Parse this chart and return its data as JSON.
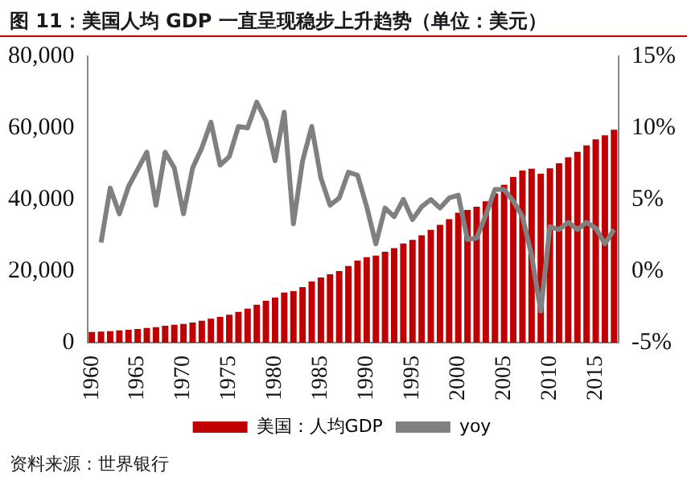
{
  "chart_data": {
    "type": "bar",
    "title": "图 11：美国人均 GDP 一直呈现稳步上升趋势（单位：美元）",
    "categories": [
      "1960",
      null,
      null,
      null,
      null,
      "1965",
      null,
      null,
      null,
      null,
      "1970",
      null,
      null,
      null,
      null,
      "1975",
      null,
      null,
      null,
      null,
      "1980",
      null,
      null,
      null,
      null,
      "1985",
      null,
      null,
      null,
      null,
      "1990",
      null,
      null,
      null,
      null,
      "1995",
      null,
      null,
      null,
      null,
      "2000",
      null,
      null,
      null,
      null,
      "2005",
      null,
      null,
      null,
      null,
      "2010",
      null,
      null,
      null,
      null,
      "2015",
      null,
      null
    ],
    "series": [
      {
        "name": "美国：人均GDP",
        "color": "#c00000",
        "values": [
          3000,
          3100,
          3200,
          3400,
          3600,
          3800,
          4100,
          4300,
          4700,
          5000,
          5200,
          5600,
          6100,
          6700,
          7200,
          7800,
          8600,
          9500,
          10600,
          11700,
          12600,
          14000,
          14400,
          15500,
          17100,
          18200,
          19100,
          20000,
          21400,
          22900,
          23900,
          24300,
          25400,
          26400,
          27700,
          28700,
          30000,
          31500,
          32900,
          34500,
          36300,
          37100,
          38000,
          39500,
          41700,
          44100,
          46300,
          48100,
          48600,
          47200,
          48700,
          50100,
          51800,
          53300,
          55100,
          56800,
          57900,
          59500
        ]
      },
      {
        "name": "yoy",
        "type": "line",
        "axis": "y2",
        "color": "#808080",
        "values": [
          null,
          2.0,
          5.8,
          4.0,
          5.9,
          7.1,
          8.3,
          4.6,
          8.3,
          7.2,
          4.0,
          7.2,
          8.6,
          10.4,
          7.4,
          8.0,
          10.1,
          10.0,
          11.8,
          10.5,
          7.7,
          11.1,
          3.3,
          7.7,
          10.1,
          6.5,
          4.6,
          5.1,
          6.9,
          6.7,
          4.5,
          1.9,
          4.4,
          3.8,
          5.0,
          3.6,
          4.5,
          5.0,
          4.4,
          5.1,
          5.3,
          2.2,
          2.3,
          3.9,
          5.7,
          5.7,
          4.9,
          3.8,
          1.1,
          -2.8,
          3.1,
          2.9,
          3.4,
          2.9,
          3.4,
          3.0,
          1.9,
          2.9
        ]
      }
    ],
    "ylim": [
      0,
      80000
    ],
    "yticks": [
      {
        "value": 0,
        "label": "0"
      },
      {
        "value": 20000,
        "label": "20,000"
      },
      {
        "value": 40000,
        "label": "40,000"
      },
      {
        "value": 60000,
        "label": "60,000"
      },
      {
        "value": 80000,
        "label": "80,000"
      }
    ],
    "y2lim": [
      -5,
      15
    ],
    "y2ticks": [
      {
        "value": -5,
        "label": "-5%"
      },
      {
        "value": 0,
        "label": "0%"
      },
      {
        "value": 5,
        "label": "5%"
      },
      {
        "value": 10,
        "label": "10%"
      },
      {
        "value": 15,
        "label": "15%"
      }
    ],
    "grid": false,
    "legend": "bottom",
    "marker": "none",
    "annotations": [
      "资料来源：世界银行"
    ]
  }
}
